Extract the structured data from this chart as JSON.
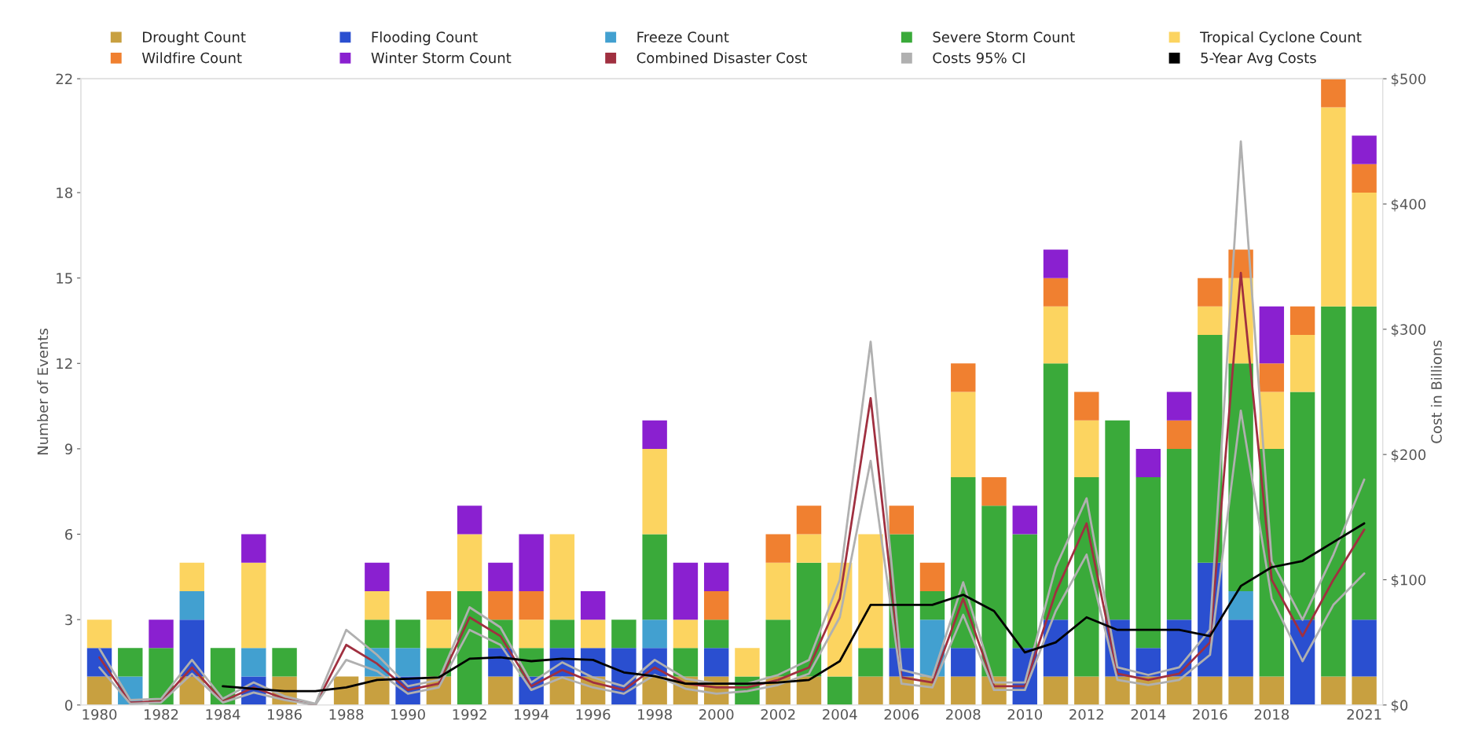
{
  "chart_data": {
    "type": "bar",
    "stacked": true,
    "categories": [
      "1980",
      null,
      "1982",
      null,
      "1984",
      null,
      "1986",
      null,
      "1988",
      null,
      "1990",
      null,
      "1992",
      null,
      "1994",
      null,
      "1996",
      null,
      "1998",
      null,
      "2000",
      null,
      "2002",
      null,
      "2004",
      null,
      "2006",
      null,
      "2008",
      null,
      "2010",
      null,
      "2012",
      null,
      "2014",
      null,
      "2016",
      null,
      "2018",
      null,
      null,
      "2021"
    ],
    "ylabel": "Number of Events",
    "y2label": "Cost in Billions",
    "ylim": [
      0,
      22
    ],
    "yticks": [
      0,
      3,
      6,
      9,
      12,
      15,
      18,
      22
    ],
    "y2lim": [
      0,
      500
    ],
    "y2ticks": [
      {
        "value": 0,
        "label": "$0"
      },
      {
        "value": 100,
        "label": "$100"
      },
      {
        "value": 200,
        "label": "$200"
      },
      {
        "value": 300,
        "label": "$300"
      },
      {
        "value": 400,
        "label": "$400"
      },
      {
        "value": 500,
        "label": "$500"
      }
    ],
    "legend": "top",
    "grid": false,
    "series": [
      {
        "name": "Drought Count",
        "color": "#c8a040",
        "values": [
          1,
          0,
          0,
          1,
          0,
          0,
          1,
          0,
          1,
          1,
          0,
          1,
          0,
          1,
          0,
          1,
          1,
          0,
          1,
          1,
          1,
          0,
          1,
          1,
          0,
          1,
          1,
          1,
          1,
          1,
          0,
          1,
          1,
          1,
          1,
          1,
          1,
          1,
          1,
          0,
          1,
          1
        ]
      },
      {
        "name": "Flooding Count",
        "color": "#2a4fd0",
        "values": [
          1,
          0,
          0,
          2,
          0,
          1,
          0,
          0,
          0,
          0,
          1,
          0,
          0,
          1,
          1,
          1,
          1,
          2,
          1,
          0,
          1,
          0,
          0,
          0,
          0,
          0,
          1,
          0,
          1,
          0,
          2,
          2,
          0,
          2,
          1,
          2,
          4,
          2,
          0,
          3,
          0,
          2
        ]
      },
      {
        "name": "Freeze Count",
        "color": "#42a0d0",
        "values": [
          0,
          1,
          0,
          1,
          0,
          1,
          0,
          0,
          0,
          1,
          1,
          0,
          0,
          0,
          0,
          0,
          0,
          0,
          1,
          0,
          0,
          0,
          0,
          0,
          0,
          0,
          0,
          2,
          0,
          0,
          0,
          0,
          0,
          0,
          0,
          0,
          0,
          1,
          0,
          0,
          0,
          0
        ]
      },
      {
        "name": "Severe Storm Count",
        "color": "#3aaa3a",
        "values": [
          0,
          1,
          2,
          0,
          2,
          0,
          1,
          0,
          0,
          1,
          1,
          1,
          4,
          1,
          1,
          1,
          0,
          1,
          3,
          1,
          1,
          1,
          2,
          4,
          1,
          1,
          4,
          1,
          6,
          6,
          4,
          9,
          7,
          7,
          6,
          6,
          8,
          8,
          8,
          8,
          13,
          11
        ]
      },
      {
        "name": "Tropical Cyclone Count",
        "color": "#fcd460",
        "values": [
          1,
          0,
          0,
          1,
          0,
          3,
          0,
          0,
          0,
          1,
          0,
          1,
          2,
          0,
          1,
          3,
          1,
          0,
          3,
          1,
          0,
          1,
          2,
          1,
          4,
          4,
          0,
          0,
          3,
          0,
          0,
          2,
          2,
          0,
          0,
          0,
          1,
          3,
          2,
          2,
          7,
          4
        ]
      },
      {
        "name": "Wildfire Count",
        "color": "#f08030",
        "values": [
          0,
          0,
          0,
          0,
          0,
          0,
          0,
          0,
          0,
          0,
          0,
          1,
          0,
          1,
          1,
          0,
          0,
          0,
          0,
          0,
          1,
          0,
          1,
          1,
          0,
          0,
          1,
          1,
          1,
          1,
          0,
          1,
          1,
          0,
          0,
          1,
          1,
          1,
          1,
          1,
          1,
          1
        ]
      },
      {
        "name": "Winter Storm Count",
        "color": "#8a20d0",
        "values": [
          0,
          0,
          1,
          0,
          0,
          1,
          0,
          0,
          0,
          1,
          0,
          0,
          1,
          1,
          2,
          0,
          1,
          0,
          1,
          2,
          1,
          0,
          0,
          0,
          0,
          0,
          0,
          0,
          0,
          0,
          1,
          1,
          0,
          0,
          1,
          1,
          0,
          0,
          2,
          0,
          0,
          1
        ]
      },
      {
        "name": "Combined Disaster Cost",
        "type": "line",
        "axis": "y2",
        "color": "#a03040",
        "values": [
          38,
          2,
          3,
          30,
          3,
          14,
          5,
          0,
          48,
          33,
          12,
          17,
          70,
          55,
          15,
          28,
          18,
          12,
          30,
          17,
          14,
          14,
          20,
          30,
          85,
          245,
          22,
          18,
          85,
          15,
          15,
          90,
          145,
          25,
          20,
          25,
          50,
          345,
          100,
          55,
          100,
          140
        ]
      },
      {
        "name": "Costs 95% CI",
        "type": "line",
        "axis": "y2",
        "color": "#b0b0b0",
        "values": [
          45,
          4,
          5,
          36,
          5,
          18,
          7,
          1,
          60,
          40,
          15,
          20,
          78,
          62,
          18,
          34,
          22,
          15,
          36,
          21,
          17,
          17,
          24,
          36,
          100,
          290,
          28,
          22,
          98,
          18,
          18,
          110,
          165,
          30,
          24,
          30,
          60,
          450,
          115,
          68,
          120,
          180
        ]
      },
      {
        "type": "line",
        "axis": "y2",
        "color": "#b0b0b0",
        "values": [
          30,
          1,
          2,
          25,
          2,
          10,
          4,
          0,
          36,
          27,
          9,
          14,
          60,
          48,
          12,
          22,
          14,
          9,
          24,
          13,
          9,
          11,
          16,
          25,
          70,
          195,
          17,
          14,
          72,
          12,
          12,
          75,
          120,
          20,
          16,
          20,
          40,
          235,
          85,
          35,
          80,
          105
        ]
      },
      {
        "name": "5-Year Avg Costs",
        "type": "line",
        "axis": "y2",
        "color": "#000000",
        "values": [
          null,
          null,
          null,
          null,
          15,
          13,
          11,
          11,
          14,
          20,
          21,
          22,
          37,
          38,
          35,
          37,
          36,
          26,
          23,
          17,
          17,
          17,
          18,
          20,
          35,
          80,
          80,
          80,
          88,
          75,
          42,
          50,
          70,
          60,
          60,
          60,
          55,
          95,
          110,
          115,
          130,
          145
        ]
      }
    ]
  }
}
